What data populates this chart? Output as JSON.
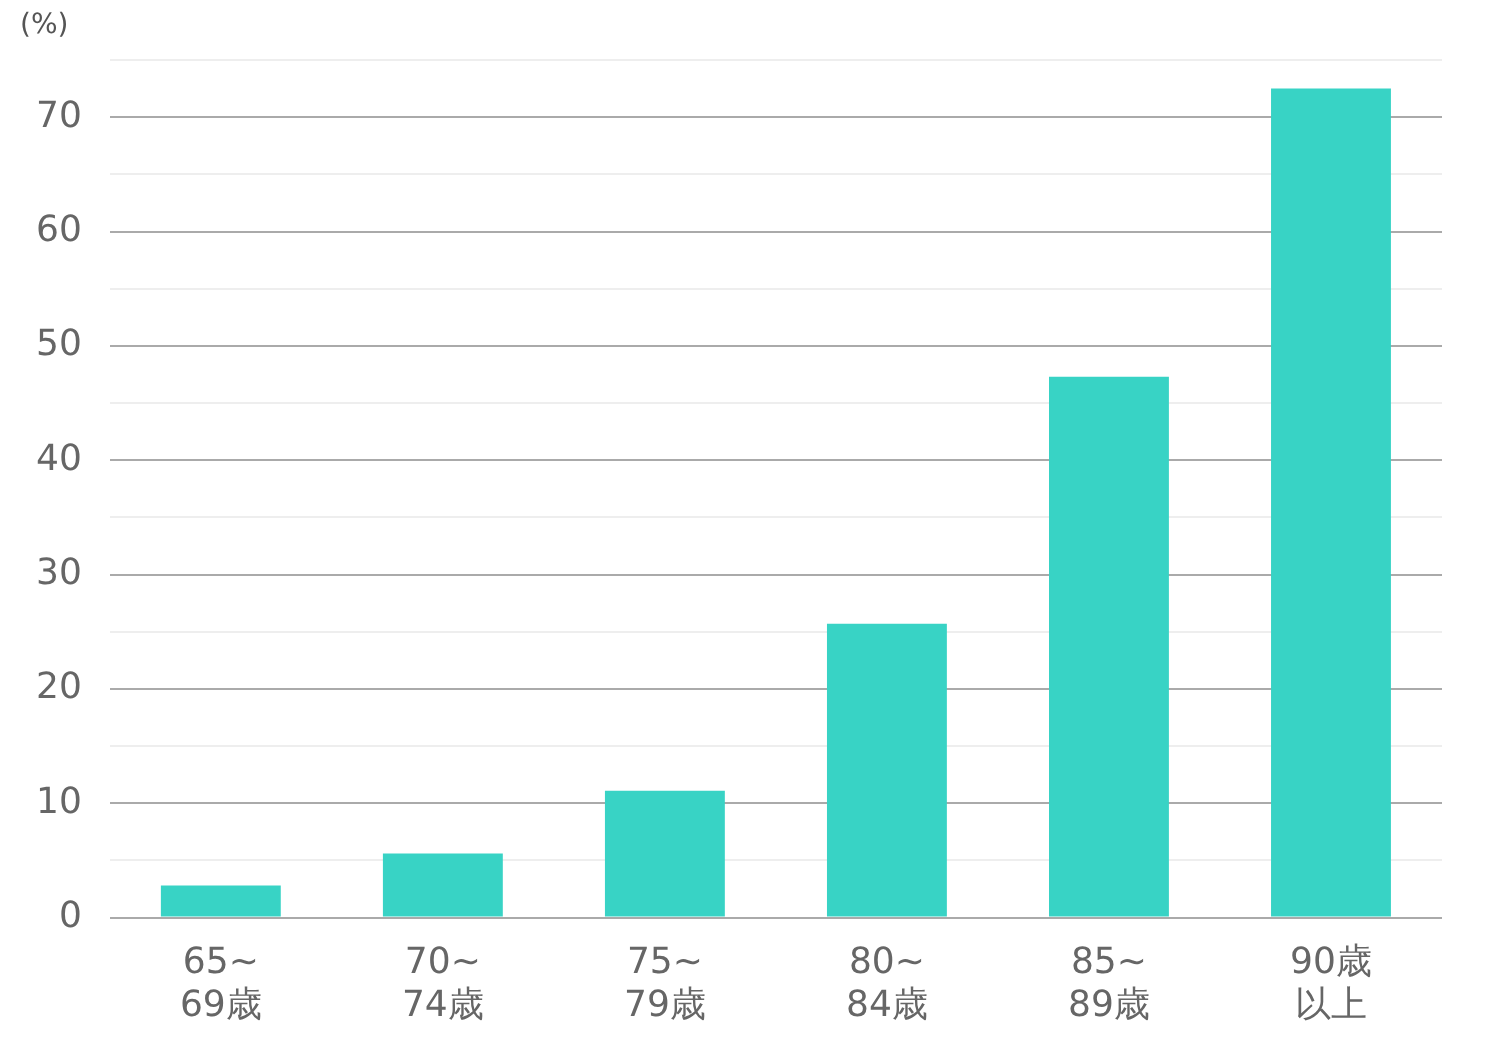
{
  "chart_data": {
    "type": "bar",
    "ylabel": "(%)",
    "categories": [
      "65~69歳",
      "70~74歳",
      "75~79歳",
      "80~84歳",
      "85~89歳",
      "90歳以上"
    ],
    "values": [
      2.8,
      5.6,
      11.1,
      25.7,
      47.3,
      72.5
    ],
    "color": "#38d3c5",
    "ylim": [
      0,
      75
    ],
    "yticks": [
      0,
      {
        "value": 5,
        "label": null
      },
      10,
      {
        "value": 15,
        "label": null
      },
      20,
      {
        "value": 25,
        "label": null
      },
      30,
      {
        "value": 35,
        "label": null
      },
      40,
      {
        "value": 45,
        "label": null
      },
      50,
      {
        "value": 55,
        "label": null
      },
      60,
      {
        "value": 65,
        "label": null
      },
      70,
      {
        "value": 75,
        "label": null
      }
    ],
    "grid": "y",
    "legend": false
  }
}
